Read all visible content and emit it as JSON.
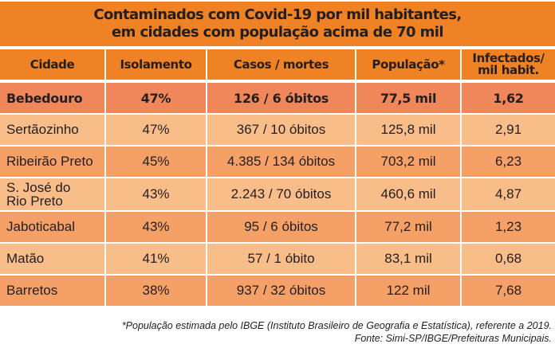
{
  "title": {
    "line1": "Contaminados com Covid-19 por mil habitantes,",
    "line2": "em cidades com população acima de 70 mil"
  },
  "headers": [
    "Cidade",
    "Isolamento",
    "Casos / mortes",
    "População*",
    "Infectados/",
    "mil habit."
  ],
  "rows": [
    {
      "city": "Bebedouro",
      "city2": "",
      "isolamento": "47%",
      "casos": "126 / 6 óbitos",
      "populacao": "77,5 mil",
      "infectados": "1,62",
      "highlight": true
    },
    {
      "city": "Sertãozinho",
      "city2": "",
      "isolamento": "47%",
      "casos": "367 / 10 óbitos",
      "populacao": "125,8 mil",
      "infectados": "2,91"
    },
    {
      "city": "Ribeirão Preto",
      "city2": "",
      "isolamento": "45%",
      "casos": "4.385 / 134 óbitos",
      "populacao": "703,2 mil",
      "infectados": "6,23"
    },
    {
      "city": "S. José do",
      "city2": "Rio Preto",
      "isolamento": "43%",
      "casos": "2.243 / 70 óbitos",
      "populacao": "460,6 mil",
      "infectados": "4,87"
    },
    {
      "city": "Jaboticabal",
      "city2": "",
      "isolamento": "43%",
      "casos": "95 / 6 óbitos",
      "populacao": "77,2 mil",
      "infectados": "1,23"
    },
    {
      "city": "Matão",
      "city2": "",
      "isolamento": "41%",
      "casos": "57 / 1 óbito",
      "populacao": "83,1 mil",
      "infectados": "0,68"
    },
    {
      "city": "Barretos",
      "city2": "",
      "isolamento": "38%",
      "casos": "937 / 32 óbitos",
      "populacao": "122 mil",
      "infectados": "7,68"
    }
  ],
  "footnote": {
    "line1": "*População estimada pelo IBGE (Instituto Brasileiro de Geografia e Estatística), referente a 2019.",
    "line2": "Fonte: Simi-SP/IBGE/Prefeituras Municipais."
  },
  "colors": {
    "header": "#f08226",
    "highlight_row": "#f0875a",
    "light_row": "#f9bd8a",
    "dark_row": "#f4a066"
  },
  "chart_data": {
    "type": "table",
    "title": "Contaminados com Covid-19 por mil habitantes, em cidades com população acima de 70 mil",
    "columns": [
      "Cidade",
      "Isolamento",
      "Casos / mortes",
      "População*",
      "Infectados/ mil habit."
    ],
    "rows": [
      [
        "Bebedouro",
        "47%",
        "126 / 6 óbitos",
        "77,5 mil",
        "1,62"
      ],
      [
        "Sertãozinho",
        "47%",
        "367 / 10 óbitos",
        "125,8 mil",
        "2,91"
      ],
      [
        "Ribeirão Preto",
        "45%",
        "4.385 / 134 óbitos",
        "703,2 mil",
        "6,23"
      ],
      [
        "S. José do Rio Preto",
        "43%",
        "2.243 / 70 óbitos",
        "460,6 mil",
        "4,87"
      ],
      [
        "Jaboticabal",
        "43%",
        "95 / 6 óbitos",
        "77,2 mil",
        "1,23"
      ],
      [
        "Matão",
        "41%",
        "57 / 1 óbito",
        "83,1 mil",
        "0,68"
      ],
      [
        "Barretos",
        "38%",
        "937 / 32 óbitos",
        "122 mil",
        "7,68"
      ]
    ]
  }
}
